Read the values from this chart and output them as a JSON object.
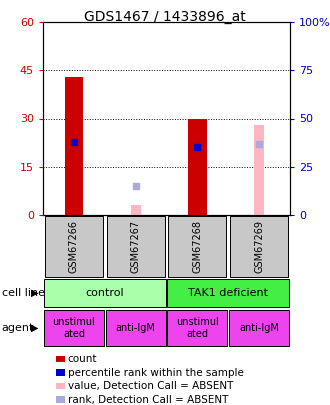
{
  "title": "GDS1467 / 1433896_at",
  "samples": [
    "GSM67266",
    "GSM67267",
    "GSM67268",
    "GSM67269"
  ],
  "count_values": [
    43,
    null,
    30,
    null
  ],
  "count_color": "#cc0000",
  "rank_values": [
    38,
    null,
    35,
    null
  ],
  "rank_color": "#0000cc",
  "absent_value_values": [
    null,
    3,
    null,
    28
  ],
  "absent_value_color": "#ffb6c1",
  "absent_rank_values": [
    null,
    15,
    null,
    37
  ],
  "absent_rank_color": "#aaaadd",
  "ylim_left": [
    0,
    60
  ],
  "ylim_right": [
    0,
    100
  ],
  "yticks_left": [
    0,
    15,
    30,
    45,
    60
  ],
  "yticks_right": [
    0,
    25,
    50,
    75,
    100
  ],
  "ytick_labels_left": [
    "0",
    "15",
    "30",
    "45",
    "60"
  ],
  "ytick_labels_right": [
    "0",
    "25",
    "50",
    "75",
    "100%"
  ],
  "cell_line_labels": [
    "control",
    "TAK1 deficient"
  ],
  "cell_line_colors": [
    "#aaffaa",
    "#44ee44"
  ],
  "cell_line_spans": [
    [
      0,
      2
    ],
    [
      2,
      4
    ]
  ],
  "agent_labels": [
    "unstimul\nated",
    "anti-IgM",
    "unstimul\nated",
    "anti-IgM"
  ],
  "agent_color": "#ee44ee",
  "sample_box_color": "#c8c8c8",
  "legend_items": [
    {
      "label": "count",
      "color": "#cc0000"
    },
    {
      "label": "percentile rank within the sample",
      "color": "#0000cc"
    },
    {
      "label": "value, Detection Call = ABSENT",
      "color": "#ffb6c1"
    },
    {
      "label": "rank, Detection Call = ABSENT",
      "color": "#aaaadd"
    }
  ]
}
